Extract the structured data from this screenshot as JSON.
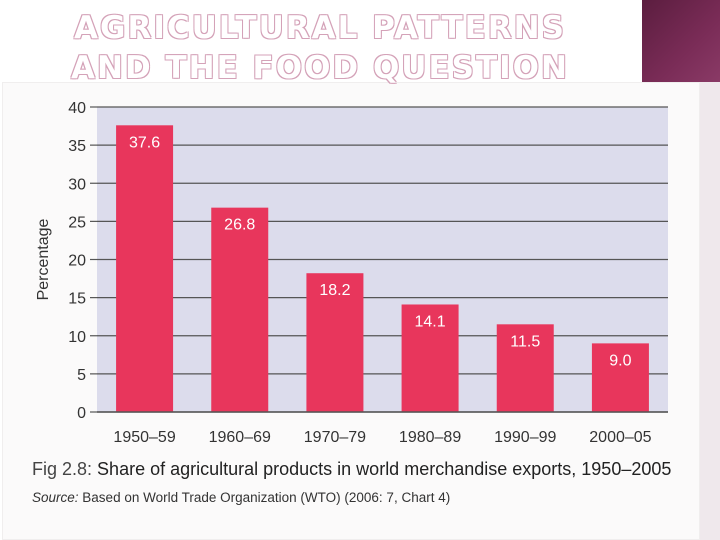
{
  "slide": {
    "title": "AGRICULTURAL PATTERNS AND THE FOOD QUESTION"
  },
  "figure": {
    "caption_id": "Fig 2.8:",
    "caption_text": "Share of agricultural products in world merchandise exports, 1950–2005",
    "source_label": "Source:",
    "source_text": "Based on World Trade Organization (WTO) (2006: 7, Chart 4)"
  },
  "colors": {
    "bar": "#e8365c",
    "plot_bg": "#dcdcec",
    "grid": "#555555"
  },
  "chart_data": {
    "type": "bar",
    "ylabel": "Percentage",
    "ylim": [
      0,
      40
    ],
    "yticks": [
      0,
      5,
      10,
      15,
      20,
      25,
      30,
      35,
      40
    ],
    "grid": true,
    "categories": [
      "1950–59",
      "1960–69",
      "1970–79",
      "1980–89",
      "1990–99",
      "2000–05"
    ],
    "values": [
      37.6,
      26.8,
      18.2,
      14.1,
      11.5,
      9.0
    ],
    "value_labels": [
      "37.6",
      "26.8",
      "18.2",
      "14.1",
      "11.5",
      "9.0"
    ]
  }
}
